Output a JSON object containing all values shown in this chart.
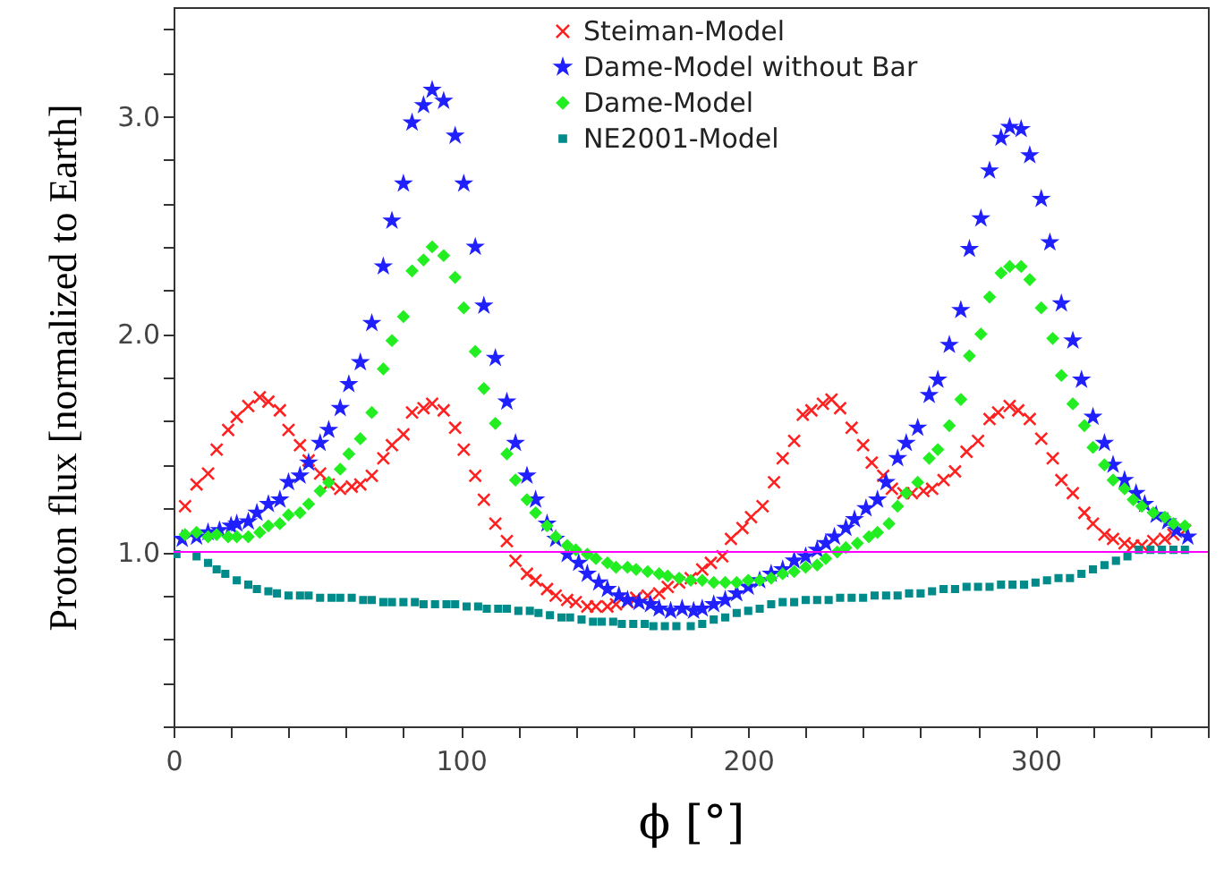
{
  "chart_data": {
    "type": "scatter",
    "xlabel": "ϕ [°]",
    "ylabel": "Proton flux [normalized to Earth]",
    "xlim": [
      0,
      360
    ],
    "ylim": [
      0.2,
      3.5
    ],
    "xticks": [
      0,
      {
        "value": 20,
        "label": null
      },
      {
        "value": 40,
        "label": null
      },
      {
        "value": 60,
        "label": null
      },
      {
        "value": 80,
        "label": null
      },
      100,
      {
        "value": 120,
        "label": null
      },
      {
        "value": 140,
        "label": null
      },
      {
        "value": 160,
        "label": null
      },
      {
        "value": 180,
        "label": null
      },
      200,
      {
        "value": 220,
        "label": null
      },
      {
        "value": 240,
        "label": null
      },
      {
        "value": 260,
        "label": null
      },
      {
        "value": 280,
        "label": null
      },
      300,
      {
        "value": 320,
        "label": null
      },
      {
        "value": 340,
        "label": null
      },
      {
        "value": 360,
        "label": null
      }
    ],
    "yticks": [
      {
        "value": 0.2,
        "label": null
      },
      {
        "value": 0.4,
        "label": null
      },
      {
        "value": 0.6,
        "label": null
      },
      {
        "value": 0.8,
        "label": null
      },
      {
        "value": 1,
        "label": "1.0"
      },
      {
        "value": 1.2,
        "label": null
      },
      {
        "value": 1.4,
        "label": null
      },
      {
        "value": 1.6,
        "label": null
      },
      {
        "value": 1.8,
        "label": null
      },
      {
        "value": 2,
        "label": "2.0"
      },
      {
        "value": 2.2,
        "label": null
      },
      {
        "value": 2.4,
        "label": null
      },
      {
        "value": 2.6,
        "label": null
      },
      {
        "value": 2.8,
        "label": null
      },
      {
        "value": 3,
        "label": "3.0"
      },
      {
        "value": 3.2,
        "label": null
      },
      {
        "value": 3.4,
        "label": null
      }
    ],
    "legend": "top",
    "ref_lines": [
      {
        "axis": "y",
        "value": 1,
        "label": null,
        "color": "#ff00ff"
      }
    ],
    "series": [
      {
        "name": "Steiman-Model",
        "color": "#ff2020",
        "marker": "cross",
        "x": [
          4,
          8,
          12,
          15,
          19,
          22,
          26,
          30,
          33,
          37,
          40,
          44,
          47,
          51,
          54,
          58,
          62,
          65,
          69,
          73,
          76,
          80,
          83,
          87,
          90,
          94,
          98,
          101,
          105,
          108,
          112,
          116,
          119,
          123,
          126,
          130,
          133,
          137,
          140,
          144,
          147,
          151,
          154,
          158,
          161,
          165,
          169,
          172,
          176,
          180,
          184,
          187,
          191,
          194,
          198,
          201,
          205,
          209,
          212,
          216,
          219,
          222,
          226,
          229,
          232,
          236,
          240,
          243,
          247,
          250,
          254,
          257,
          261,
          264,
          268,
          272,
          276,
          280,
          284,
          287,
          291,
          294,
          298,
          302,
          306,
          309,
          313,
          317,
          320,
          324,
          327,
          331,
          334,
          337,
          341,
          345,
          348,
          352
        ],
        "values": [
          1.21,
          1.31,
          1.36,
          1.47,
          1.56,
          1.62,
          1.67,
          1.71,
          1.69,
          1.65,
          1.56,
          1.49,
          1.42,
          1.36,
          1.31,
          1.29,
          1.3,
          1.31,
          1.35,
          1.43,
          1.49,
          1.54,
          1.64,
          1.66,
          1.68,
          1.65,
          1.57,
          1.47,
          1.35,
          1.24,
          1.13,
          1.05,
          0.96,
          0.9,
          0.87,
          0.83,
          0.8,
          0.78,
          0.77,
          0.75,
          0.75,
          0.75,
          0.76,
          0.77,
          0.79,
          0.8,
          0.81,
          0.84,
          0.86,
          0.88,
          0.92,
          0.95,
          0.98,
          1.06,
          1.11,
          1.16,
          1.21,
          1.32,
          1.43,
          1.51,
          1.63,
          1.65,
          1.68,
          1.7,
          1.66,
          1.57,
          1.49,
          1.41,
          1.35,
          1.29,
          1.27,
          1.27,
          1.28,
          1.29,
          1.33,
          1.37,
          1.46,
          1.51,
          1.61,
          1.64,
          1.67,
          1.65,
          1.61,
          1.52,
          1.43,
          1.33,
          1.27,
          1.18,
          1.13,
          1.08,
          1.06,
          1.04,
          1.03,
          1.03,
          1.05,
          1.06,
          1.08,
          1.1
        ]
      },
      {
        "name": "Dame-Model without Bar",
        "color": "#2020ff",
        "marker": "star",
        "x": [
          3,
          8,
          12,
          16,
          20,
          22,
          26,
          29,
          33,
          37,
          40,
          44,
          47,
          51,
          54,
          58,
          61,
          65,
          69,
          73,
          76,
          80,
          83,
          87,
          90,
          94,
          98,
          101,
          105,
          108,
          112,
          116,
          119,
          123,
          126,
          130,
          133,
          137,
          141,
          144,
          148,
          151,
          155,
          158,
          162,
          166,
          169,
          173,
          177,
          181,
          184,
          188,
          192,
          196,
          200,
          204,
          208,
          212,
          216,
          220,
          224,
          227,
          230,
          234,
          237,
          241,
          245,
          248,
          252,
          255,
          259,
          263,
          266,
          270,
          274,
          277,
          281,
          284,
          288,
          291,
          295,
          298,
          302,
          305,
          309,
          313,
          316,
          320,
          324,
          327,
          331,
          335,
          338,
          342,
          346,
          349,
          353
        ],
        "values": [
          1.06,
          1.07,
          1.09,
          1.1,
          1.12,
          1.13,
          1.14,
          1.18,
          1.22,
          1.24,
          1.32,
          1.35,
          1.41,
          1.5,
          1.56,
          1.66,
          1.77,
          1.87,
          2.05,
          2.31,
          2.52,
          2.69,
          2.97,
          3.05,
          3.12,
          3.07,
          2.91,
          2.69,
          2.4,
          2.13,
          1.89,
          1.69,
          1.5,
          1.35,
          1.24,
          1.13,
          1.06,
          0.99,
          0.95,
          0.9,
          0.86,
          0.83,
          0.8,
          0.78,
          0.77,
          0.76,
          0.74,
          0.73,
          0.74,
          0.73,
          0.74,
          0.76,
          0.78,
          0.81,
          0.84,
          0.87,
          0.9,
          0.92,
          0.96,
          0.98,
          1.01,
          1.04,
          1.07,
          1.11,
          1.15,
          1.2,
          1.24,
          1.32,
          1.43,
          1.5,
          1.57,
          1.72,
          1.79,
          1.95,
          2.11,
          2.39,
          2.53,
          2.75,
          2.9,
          2.95,
          2.94,
          2.82,
          2.62,
          2.42,
          2.14,
          1.97,
          1.79,
          1.62,
          1.5,
          1.4,
          1.33,
          1.27,
          1.22,
          1.17,
          1.14,
          1.1,
          1.07
        ]
      },
      {
        "name": "Dame-Model",
        "color": "#22ee22",
        "marker": "diamond",
        "x": [
          4,
          8,
          12,
          15,
          19,
          22,
          26,
          30,
          33,
          37,
          40,
          44,
          47,
          51,
          54,
          58,
          61,
          65,
          69,
          73,
          76,
          80,
          83,
          87,
          90,
          94,
          98,
          101,
          105,
          108,
          112,
          116,
          119,
          123,
          126,
          130,
          133,
          137,
          140,
          144,
          147,
          151,
          154,
          158,
          161,
          165,
          169,
          172,
          176,
          180,
          184,
          188,
          192,
          196,
          200,
          204,
          208,
          212,
          216,
          220,
          224,
          227,
          231,
          234,
          238,
          242,
          245,
          249,
          252,
          255,
          259,
          263,
          266,
          270,
          274,
          277,
          281,
          284,
          288,
          291,
          295,
          298,
          302,
          306,
          309,
          313,
          317,
          320,
          324,
          327,
          331,
          334,
          337,
          341,
          345,
          348,
          352
        ],
        "values": [
          1.08,
          1.09,
          1.07,
          1.08,
          1.07,
          1.07,
          1.07,
          1.09,
          1.12,
          1.13,
          1.17,
          1.18,
          1.22,
          1.28,
          1.32,
          1.38,
          1.45,
          1.52,
          1.64,
          1.84,
          1.97,
          2.08,
          2.29,
          2.34,
          2.4,
          2.36,
          2.26,
          2.12,
          1.92,
          1.75,
          1.59,
          1.45,
          1.33,
          1.24,
          1.18,
          1.12,
          1.07,
          1.03,
          1.01,
          0.99,
          0.97,
          0.95,
          0.93,
          0.93,
          0.92,
          0.91,
          0.9,
          0.89,
          0.88,
          0.87,
          0.87,
          0.86,
          0.86,
          0.86,
          0.87,
          0.87,
          0.88,
          0.9,
          0.91,
          0.93,
          0.94,
          0.97,
          1,
          1.02,
          1.04,
          1.07,
          1.09,
          1.13,
          1.21,
          1.27,
          1.32,
          1.43,
          1.47,
          1.58,
          1.7,
          1.9,
          2,
          2.17,
          2.28,
          2.31,
          2.31,
          2.25,
          2.12,
          1.98,
          1.81,
          1.68,
          1.58,
          1.48,
          1.4,
          1.33,
          1.29,
          1.24,
          1.21,
          1.18,
          1.16,
          1.13,
          1.12
        ]
      },
      {
        "name": "NE2001-Model",
        "color": "#008b8b",
        "marker": "square",
        "x": [
          1,
          8,
          12,
          15,
          18,
          22,
          26,
          29,
          33,
          36,
          40,
          44,
          47,
          51,
          55,
          58,
          62,
          66,
          69,
          73,
          76,
          80,
          84,
          87,
          91,
          95,
          98,
          102,
          106,
          109,
          113,
          116,
          120,
          124,
          127,
          131,
          135,
          138,
          142,
          146,
          149,
          153,
          156,
          160,
          164,
          167,
          171,
          175,
          180,
          184,
          188,
          192,
          196,
          200,
          204,
          208,
          212,
          216,
          220,
          224,
          228,
          232,
          236,
          240,
          244,
          248,
          252,
          256,
          260,
          264,
          268,
          272,
          276,
          280,
          284,
          288,
          292,
          296,
          300,
          304,
          308,
          312,
          316,
          320,
          324,
          328,
          332,
          336,
          340,
          344,
          348,
          352
        ],
        "values": [
          0.99,
          0.98,
          0.95,
          0.92,
          0.9,
          0.87,
          0.85,
          0.83,
          0.82,
          0.81,
          0.8,
          0.8,
          0.8,
          0.79,
          0.79,
          0.79,
          0.79,
          0.78,
          0.78,
          0.77,
          0.77,
          0.77,
          0.77,
          0.76,
          0.76,
          0.76,
          0.76,
          0.75,
          0.75,
          0.74,
          0.74,
          0.74,
          0.73,
          0.73,
          0.72,
          0.71,
          0.7,
          0.7,
          0.69,
          0.68,
          0.68,
          0.68,
          0.67,
          0.67,
          0.67,
          0.66,
          0.66,
          0.66,
          0.66,
          0.67,
          0.69,
          0.7,
          0.72,
          0.73,
          0.74,
          0.76,
          0.77,
          0.77,
          0.78,
          0.78,
          0.78,
          0.79,
          0.79,
          0.79,
          0.8,
          0.8,
          0.8,
          0.81,
          0.81,
          0.82,
          0.83,
          0.83,
          0.84,
          0.84,
          0.84,
          0.85,
          0.85,
          0.85,
          0.86,
          0.87,
          0.88,
          0.88,
          0.9,
          0.92,
          0.94,
          0.96,
          0.98,
          1.01,
          1.01,
          1.01,
          1.01,
          1.01
        ]
      }
    ]
  }
}
